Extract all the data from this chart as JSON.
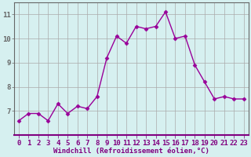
{
  "x": [
    0,
    1,
    2,
    3,
    4,
    5,
    6,
    7,
    8,
    9,
    10,
    11,
    12,
    13,
    14,
    15,
    16,
    17,
    18,
    19,
    20,
    21,
    22,
    23
  ],
  "y": [
    6.6,
    6.9,
    6.9,
    6.6,
    7.3,
    6.9,
    7.2,
    7.1,
    7.6,
    9.2,
    10.1,
    9.8,
    10.5,
    10.4,
    10.5,
    11.1,
    10.0,
    10.1,
    8.9,
    8.2,
    7.5,
    7.6,
    7.5,
    7.5
  ],
  "line_color": "#990099",
  "marker": "D",
  "marker_size": 2.5,
  "bg_color": "#d6f0f0",
  "grid_color": "#aaaaaa",
  "xlabel": "Windchill (Refroidissement éolien,°C)",
  "xlim": [
    -0.5,
    23.5
  ],
  "ylim": [
    6.0,
    11.5
  ],
  "yticks": [
    7,
    8,
    9,
    10,
    11
  ],
  "xticks": [
    0,
    1,
    2,
    3,
    4,
    5,
    6,
    7,
    8,
    9,
    10,
    11,
    12,
    13,
    14,
    15,
    16,
    17,
    18,
    19,
    20,
    21,
    22,
    23
  ],
  "xlabel_fontsize": 6.5,
  "tick_fontsize": 6.5,
  "line_width": 1.0,
  "spine_color": "#555577",
  "xaxis_color": "#800080"
}
